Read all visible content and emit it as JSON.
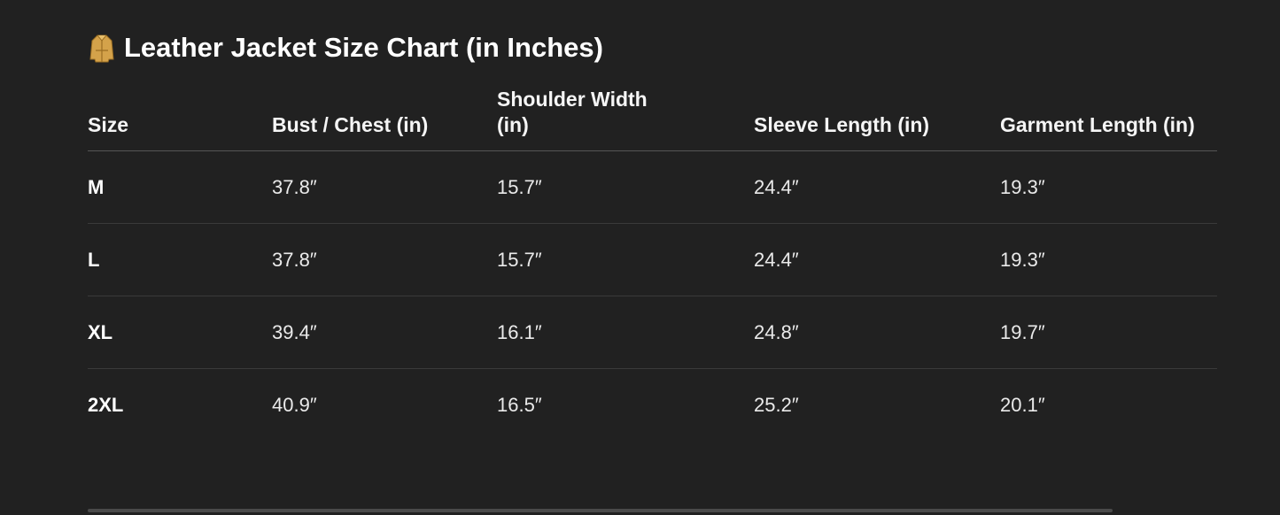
{
  "title": {
    "icon": "coat-icon",
    "text": "Leather Jacket Size Chart (in Inches)"
  },
  "table": {
    "headers": [
      "Size",
      "Bust / Chest (in)",
      "Shoulder Width (in)",
      "Sleeve Length (in)",
      "Garment Length (in)"
    ],
    "rows": [
      [
        "M",
        "37.8″",
        "15.7″",
        "24.4″",
        "19.3″"
      ],
      [
        "L",
        "37.8″",
        "15.7″",
        "24.4″",
        "19.3″"
      ],
      [
        "XL",
        "39.4″",
        "16.1″",
        "24.8″",
        "19.7″"
      ],
      [
        "2XL",
        "40.9″",
        "16.5″",
        "25.2″",
        "20.1″"
      ]
    ]
  }
}
